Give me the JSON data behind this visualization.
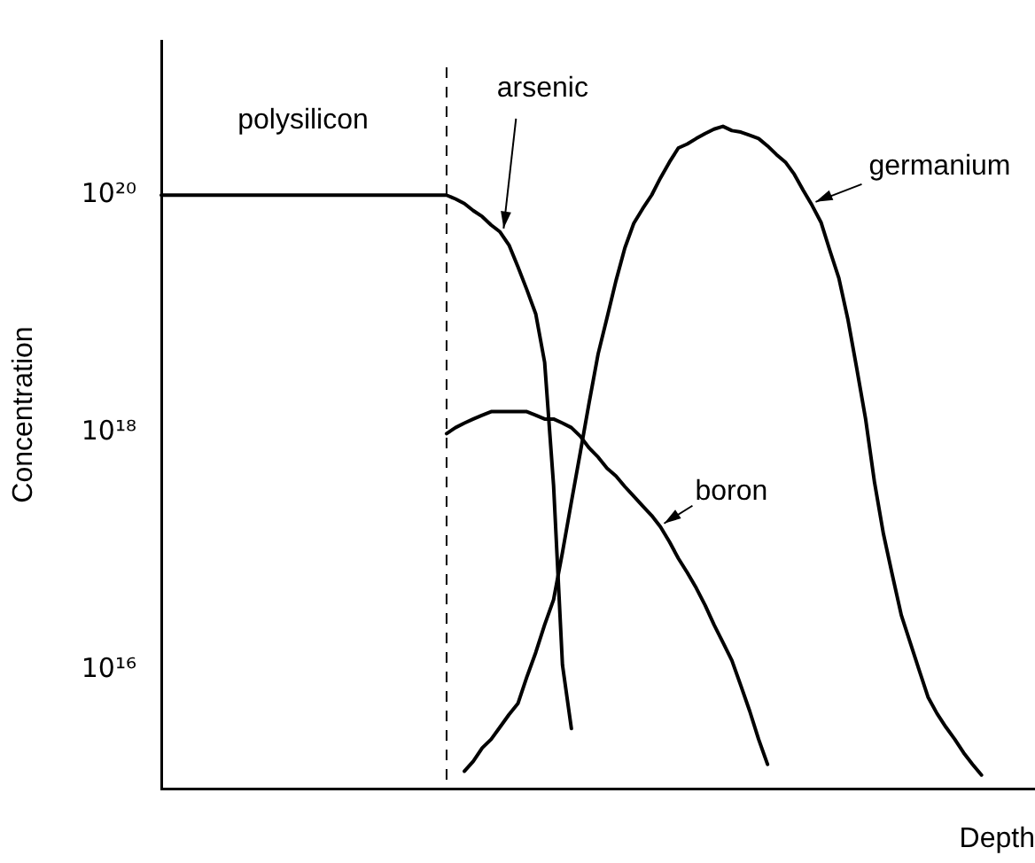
{
  "chart_data": {
    "type": "line",
    "xlabel": "Depth",
    "ylabel": "Concentration",
    "categories": [
      null,
      null,
      null,
      null,
      null,
      null,
      null,
      null,
      null,
      null,
      null,
      null,
      null,
      null,
      null,
      null,
      null,
      null,
      null,
      null,
      null,
      null,
      null,
      null,
      null,
      null,
      null,
      null,
      null,
      null,
      null,
      null,
      null,
      null,
      null,
      null,
      null,
      null,
      null,
      null,
      null,
      null,
      null,
      null,
      null,
      null,
      null,
      null,
      null,
      null,
      null,
      null,
      null,
      null,
      null,
      null,
      null,
      null,
      null,
      null,
      null,
      null,
      null,
      null,
      null,
      null,
      null,
      null,
      null,
      null,
      null,
      null,
      null,
      null,
      null,
      null,
      null,
      null,
      null,
      null,
      null,
      null,
      null,
      null,
      null,
      null,
      null,
      null,
      null,
      null,
      null,
      null,
      null,
      null,
      null,
      null,
      null,
      null,
      null
    ],
    "log": "y",
    "ylim": [
      1000000000000000.0,
      2e+21
    ],
    "yticks": [
      {
        "value": 1e+16,
        "label": "10¹⁶"
      },
      {
        "value": 1e+18,
        "label": "10¹⁸"
      },
      {
        "value": 1e+20,
        "label": "10²⁰"
      }
    ],
    "tick_labels": "y",
    "grid": false,
    "legend": false,
    "marker": "none",
    "line_style": "solid",
    "annotations": [
      "polysilicon"
    ],
    "series": [
      {
        "name": "arsenic",
        "color": "#000000",
        "values": [
          1e+20,
          1e+20,
          1e+20,
          1e+20,
          1e+20,
          1e+20,
          1e+20,
          1e+20,
          1e+20,
          1e+20,
          1e+20,
          1e+20,
          1e+20,
          1e+20,
          1e+20,
          1e+20,
          1e+20,
          1e+20,
          1e+20,
          1e+20,
          1e+20,
          1e+20,
          1e+20,
          1e+20,
          1e+20,
          1e+20,
          1e+20,
          1e+20,
          1e+20,
          1e+20,
          1e+20,
          1e+20,
          1e+20,
          9.3e+19,
          8.5e+19,
          7.4e+19,
          6.6e+19,
          5.6e+19,
          4.9e+19,
          3.8e+19,
          2.5e+19,
          1.6e+19,
          1e+19,
          3.9e+18,
          3.6e+17,
          1.1e+16,
          3200000000000000.0,
          null,
          null,
          null,
          null,
          null,
          null,
          null,
          null,
          null,
          null,
          null,
          null,
          null,
          null,
          null,
          null,
          null,
          null,
          null,
          null,
          null,
          null,
          null,
          null,
          null,
          null,
          null,
          null,
          null,
          null,
          null,
          null,
          null,
          null,
          null,
          null,
          null,
          null,
          null,
          null,
          null,
          null,
          null,
          null,
          null,
          null,
          null,
          null,
          null,
          null,
          null,
          null
        ]
      },
      {
        "name": "boron",
        "color": "#000000",
        "values": [
          null,
          null,
          null,
          null,
          null,
          null,
          null,
          null,
          null,
          null,
          null,
          null,
          null,
          null,
          null,
          null,
          null,
          null,
          null,
          null,
          null,
          null,
          null,
          null,
          null,
          null,
          null,
          null,
          null,
          null,
          null,
          null,
          9.8e+17,
          1.1e+18,
          1.2e+18,
          1.3e+18,
          1.4e+18,
          1.5e+18,
          1.5e+18,
          1.5e+18,
          1.5e+18,
          1.5e+18,
          1.4e+18,
          1.3e+18,
          1.3e+18,
          1.2e+18,
          1.1e+18,
          9.3e+17,
          7.4e+17,
          6.2e+17,
          5e+17,
          4.3e+17,
          3.5e+17,
          2.9e+17,
          2.4e+17,
          2e+17,
          1.6e+17,
          1.2e+17,
          8.7e+16,
          6.6e+16,
          4.9e+16,
          3.5e+16,
          2.4e+16,
          1.7e+16,
          1.2e+16,
          7400000000000000.0,
          4500000000000000.0,
          2600000000000000.0,
          1600000000000000.0,
          null,
          null,
          null,
          null,
          null,
          null,
          null,
          null,
          null,
          null,
          null,
          null,
          null,
          null,
          null,
          null,
          null,
          null,
          null,
          null,
          null,
          null,
          null,
          null,
          null,
          null,
          null,
          null,
          null,
          null
        ]
      },
      {
        "name": "germanium",
        "color": "#000000",
        "values": [
          null,
          null,
          null,
          null,
          null,
          null,
          null,
          null,
          null,
          null,
          null,
          null,
          null,
          null,
          null,
          null,
          null,
          null,
          null,
          null,
          null,
          null,
          null,
          null,
          null,
          null,
          null,
          null,
          null,
          null,
          null,
          null,
          null,
          null,
          1400000000000000.0,
          1700000000000000.0,
          2200000000000000.0,
          2600000000000000.0,
          3300000000000000.0,
          4200000000000000.0,
          5200000000000000.0,
          8700000000000000.0,
          1.4e+16,
          2.4e+16,
          3.9e+16,
          9.8e+16,
          2.6e+17,
          6.8e+17,
          1.8e+18,
          4.6e+18,
          9.3e+18,
          1.9e+19,
          3.6e+19,
          5.8e+19,
          7.7e+19,
          1e+20,
          1.4e+20,
          1.9e+20,
          2.5e+20,
          2.7e+20,
          3e+20,
          3.3e+20,
          3.6e+20,
          3.8e+20,
          3.5e+20,
          3.4e+20,
          3.2e+20,
          3e+20,
          2.6e+20,
          2.2e+20,
          1.9e+20,
          1.5e+20,
          1.1e+20,
          8.2e+19,
          5.9e+19,
          3.4e+19,
          2e+19,
          9.1e+18,
          3.5e+18,
          1.3e+18,
          3.8e+17,
          1.4e+17,
          6.3e+16,
          2.9e+16,
          1.7e+16,
          1e+16,
          5900000000000000.0,
          4300000000000000.0,
          3300000000000000.0,
          2600000000000000.0,
          2000000000000000.0,
          1600000000000000.0,
          1300000000000000.0,
          null,
          null,
          null,
          null,
          null,
          null
        ]
      }
    ]
  }
}
